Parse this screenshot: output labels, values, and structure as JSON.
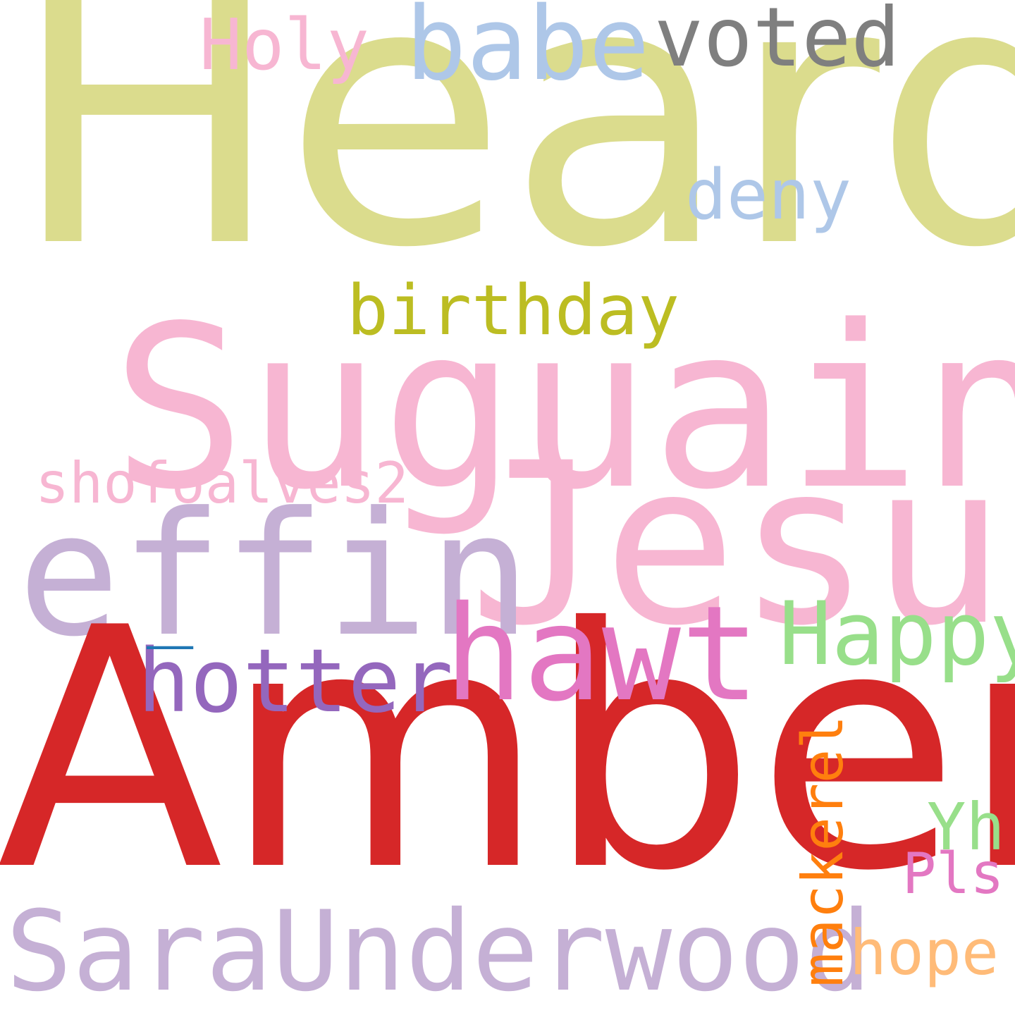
{
  "cloud": {
    "background": "#ffffff",
    "words": [
      {
        "key": "heard",
        "text": "Heard",
        "color": "#dbdc8d"
      },
      {
        "key": "suguain",
        "text": "Suguain",
        "color": "#f7b6d2"
      },
      {
        "key": "jesus",
        "text": "Jesus",
        "color": "#f7b6d2"
      },
      {
        "key": "effin",
        "text": "effin",
        "color": "#c5b0d5"
      },
      {
        "key": "amber",
        "text": "Amber",
        "color": "#d62728"
      },
      {
        "key": "sara-underwood",
        "text": "SaraUnderwood",
        "color": "#c5b0d5"
      },
      {
        "key": "hawt",
        "text": "hawt",
        "color": "#e377c2"
      },
      {
        "key": "hotter",
        "text": "hotter",
        "color": "#9467bd"
      },
      {
        "key": "happy",
        "text": "Happy",
        "color": "#98df8a"
      },
      {
        "key": "babe",
        "text": "babe",
        "color": "#aec7e8"
      },
      {
        "key": "voted",
        "text": "voted",
        "color": "#7f7f7f"
      },
      {
        "key": "holy",
        "text": "Holy",
        "color": "#f7b6d2"
      },
      {
        "key": "deny",
        "text": "deny",
        "color": "#aec7e8"
      },
      {
        "key": "birthday",
        "text": "birthday",
        "color": "#bcbd22"
      },
      {
        "key": "shofoalves2",
        "text": "shofoalves2",
        "color": "#f7b6d2"
      },
      {
        "key": "mackerel",
        "text": "mackerel",
        "color": "#ff7f0e"
      },
      {
        "key": "yh",
        "text": "Yh",
        "color": "#98df8a"
      },
      {
        "key": "pls",
        "text": "Pls",
        "color": "#e377c2"
      },
      {
        "key": "hope",
        "text": "hope",
        "color": "#ffbb78"
      },
      {
        "key": "underscore",
        "text": "_",
        "color": "#1f77b4"
      }
    ]
  }
}
